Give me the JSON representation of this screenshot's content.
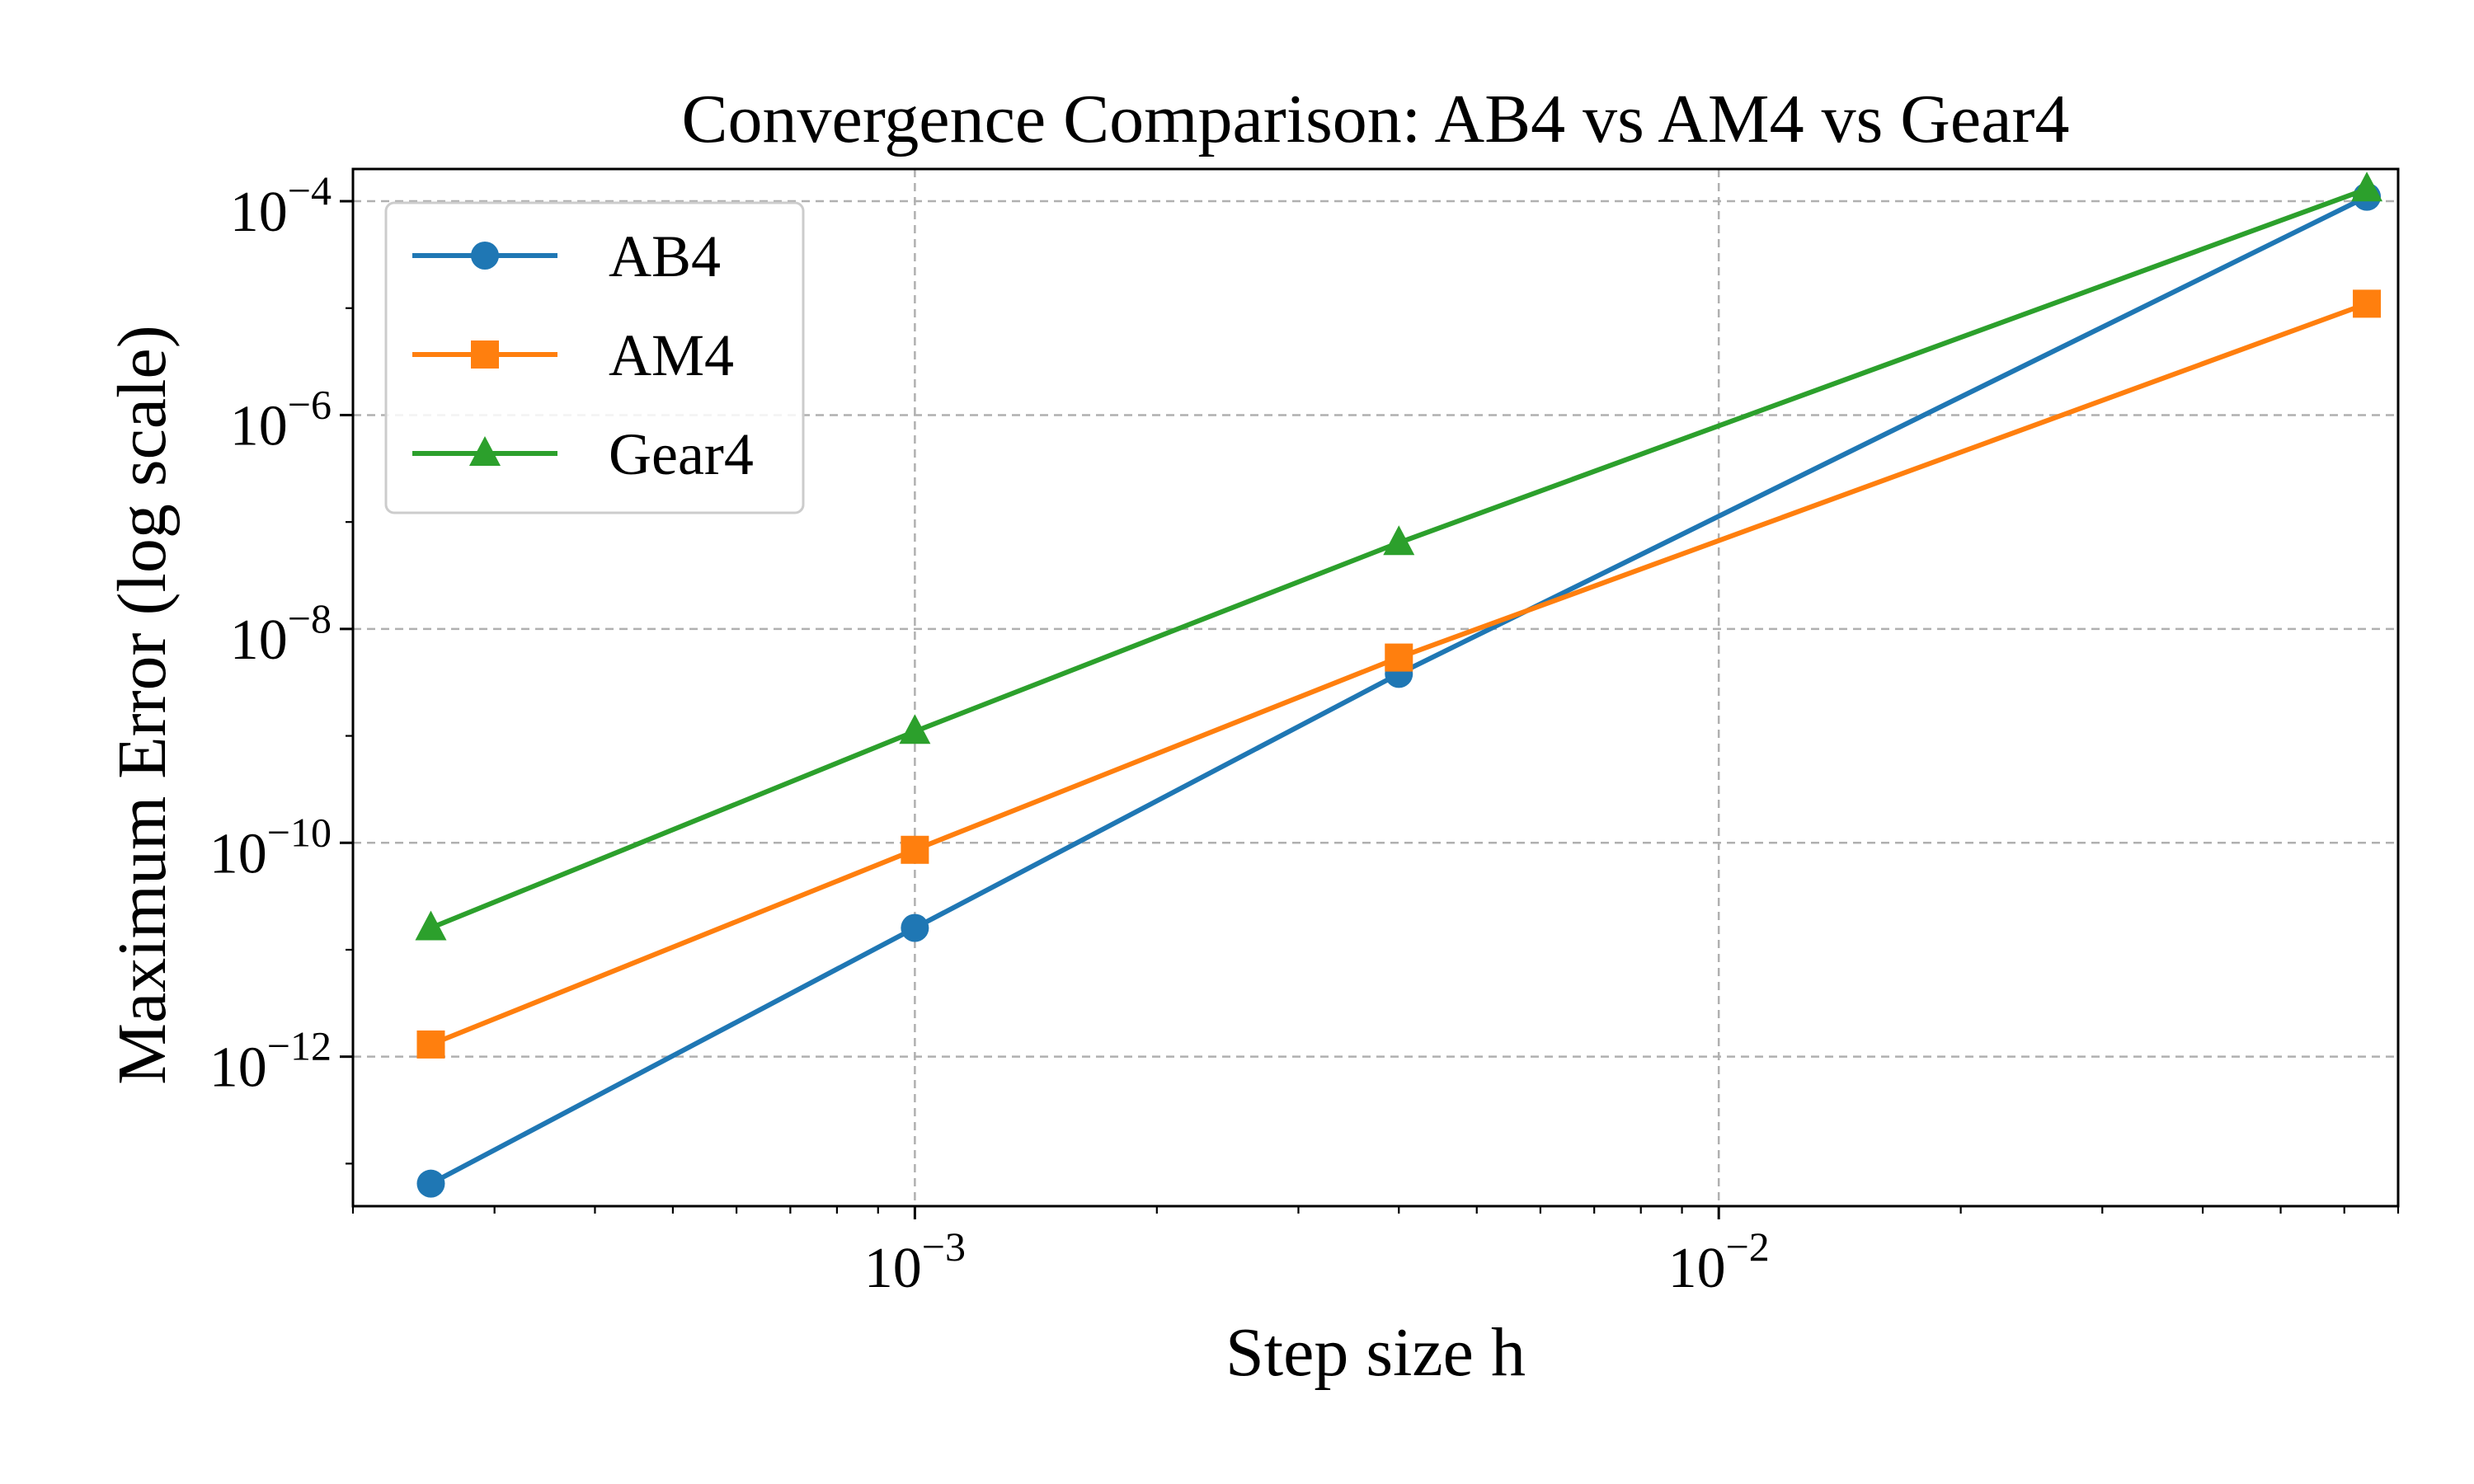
{
  "chart_data": {
    "type": "line",
    "title": "Convergence Comparison: AB4 vs AM4 vs Gear4",
    "xlabel": "Step size h",
    "ylabel": "Maximum Error (log scale)",
    "xscale": "log",
    "yscale": "log",
    "xlim": [
      0.0002,
      0.07
    ],
    "ylim": [
      4e-14,
      0.0002
    ],
    "x_ticks": [
      {
        "value": 0.001,
        "base": "10",
        "exp": "−3"
      },
      {
        "value": 0.01,
        "base": "10",
        "exp": "−2"
      }
    ],
    "y_ticks": [
      {
        "value": 1e-12,
        "base": "10",
        "exp": "−12"
      },
      {
        "value": 1e-10,
        "base": "10",
        "exp": "−10"
      },
      {
        "value": 1e-08,
        "base": "10",
        "exp": "−8"
      },
      {
        "value": 1e-06,
        "base": "10",
        "exp": "−6"
      },
      {
        "value": 0.0001,
        "base": "10",
        "exp": "−4"
      }
    ],
    "grid": true,
    "legend_position": "top-left",
    "x": [
      0.00025,
      0.001,
      0.004,
      0.064
    ],
    "series": [
      {
        "name": "AB4",
        "color": "#1f77b4",
        "marker": "circle",
        "values": [
          6.5e-14,
          1.6e-11,
          3.8e-09,
          0.00011
        ]
      },
      {
        "name": "AM4",
        "color": "#ff7f0e",
        "marker": "square",
        "values": [
          1.3e-12,
          8.6e-11,
          5.4e-09,
          1.1e-05
        ]
      },
      {
        "name": "Gear4",
        "color": "#2ca02c",
        "marker": "triangle",
        "values": [
          1.6e-11,
          1.1e-09,
          6.4e-08,
          0.00013
        ]
      }
    ]
  }
}
